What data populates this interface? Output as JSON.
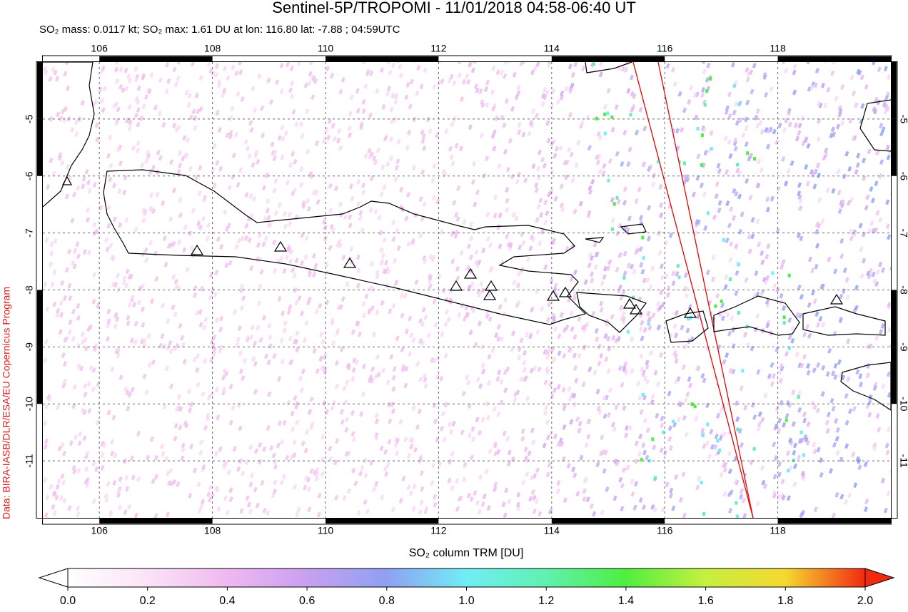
{
  "title": "Sentinel-5P/TROPOMI - 11/01/2018 04:58-06:40 UT",
  "subtitle": "SO₂ mass: 0.0117 kt; SO₂ max: 1.61 DU at lon: 116.80 lat: -7.88 ; 04:59UTC",
  "credit": "Data: BIRA-IASB/DLR/ESA/EU Copernicus Program",
  "map": {
    "lonlim": [
      105,
      120
    ],
    "latlim": [
      -12,
      -4
    ],
    "lon_ticks": [
      106,
      108,
      110,
      112,
      114,
      116,
      118
    ],
    "lat_ticks": [
      -5,
      -6,
      -7,
      -8,
      -9,
      -10,
      -11
    ]
  },
  "colorbar": {
    "label": "SO₂ column TRM [DU]",
    "lim": [
      0,
      2
    ],
    "ticks": [
      {
        "value": 0,
        "label": "0.0"
      },
      {
        "value": 0.2,
        "label": "0.2"
      },
      {
        "value": 0.4,
        "label": "0.4"
      },
      {
        "value": 0.6,
        "label": "0.6"
      },
      {
        "value": 0.8,
        "label": "0.8"
      },
      {
        "value": 1,
        "label": "1.0"
      },
      {
        "value": 1.2,
        "label": "1.2"
      },
      {
        "value": 1.4,
        "label": "1.4"
      },
      {
        "value": 1.6,
        "label": "1.6"
      },
      {
        "value": 1.8,
        "label": "1.8"
      },
      {
        "value": 2,
        "label": "2.0"
      }
    ]
  }
}
